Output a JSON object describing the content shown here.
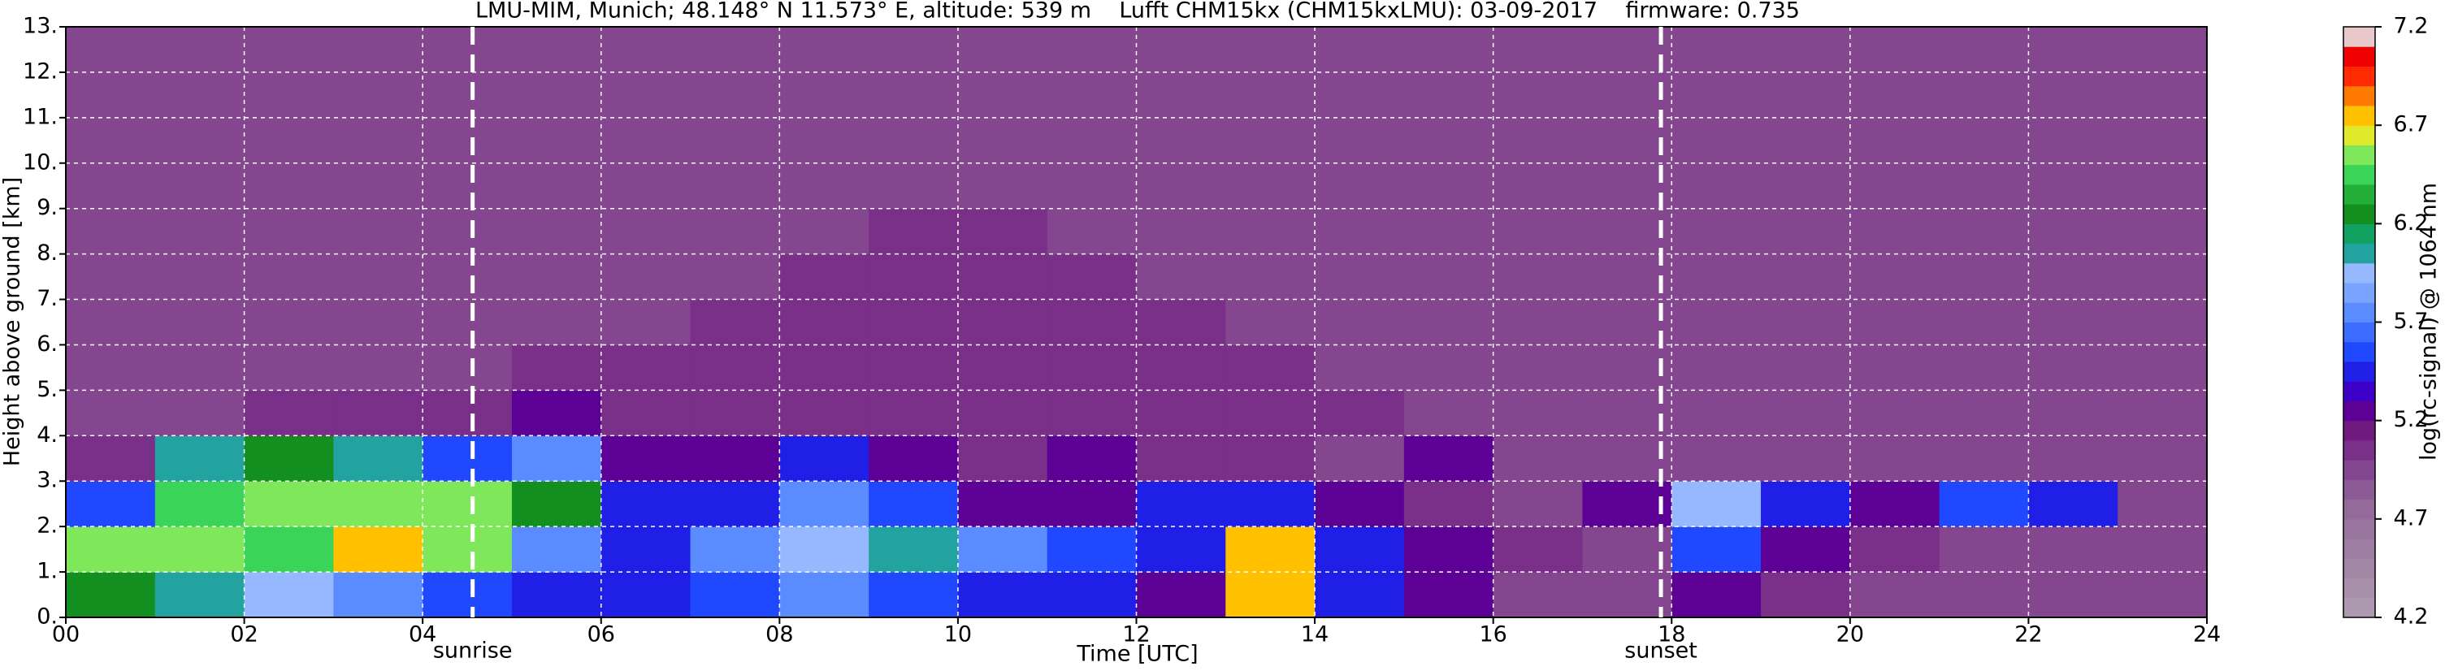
{
  "chart_data": {
    "type": "heatmap",
    "title": "LMU-MIM, Munich; 48.148° N 11.573° E, altitude: 539 m    Lufft CHM15kx (CHM15kxLMU): 03-09-2017    firmware: 0.735",
    "xlabel": "Time [UTC]",
    "ylabel": "Height above ground [km]",
    "xlim": [
      0,
      24
    ],
    "ylim": [
      0,
      13
    ],
    "xticks": [
      {
        "value": 0,
        "label": "00"
      },
      {
        "value": 2,
        "label": "02"
      },
      {
        "value": 4,
        "label": "04"
      },
      {
        "value": 6,
        "label": "06"
      },
      {
        "value": 8,
        "label": "08"
      },
      {
        "value": 10,
        "label": "10"
      },
      {
        "value": 12,
        "label": "12"
      },
      {
        "value": 14,
        "label": "14"
      },
      {
        "value": 16,
        "label": "16"
      },
      {
        "value": 18,
        "label": "18"
      },
      {
        "value": 20,
        "label": "20"
      },
      {
        "value": 22,
        "label": "22"
      },
      {
        "value": 24,
        "label": "24"
      }
    ],
    "yticks": [
      {
        "value": 0,
        "label": "0."
      },
      {
        "value": 1,
        "label": "1."
      },
      {
        "value": 2,
        "label": "2."
      },
      {
        "value": 3,
        "label": "3."
      },
      {
        "value": 4,
        "label": "4."
      },
      {
        "value": 5,
        "label": "5."
      },
      {
        "value": 6,
        "label": "6."
      },
      {
        "value": 7,
        "label": "7."
      },
      {
        "value": 8,
        "label": "8."
      },
      {
        "value": 9,
        "label": "9."
      },
      {
        "value": 10,
        "label": "10."
      },
      {
        "value": 11,
        "label": "11."
      },
      {
        "value": 12,
        "label": "12."
      },
      {
        "value": 13,
        "label": "13."
      }
    ],
    "grid": true,
    "xbins": [
      0,
      1,
      2,
      3,
      4,
      5,
      6,
      7,
      8,
      9,
      10,
      11,
      12,
      13,
      14,
      15,
      16,
      17,
      18,
      19,
      20,
      21,
      22,
      23,
      24
    ],
    "ybins": [
      0,
      1,
      2,
      3,
      4,
      5,
      6,
      7,
      8,
      9,
      10,
      11,
      12,
      13
    ],
    "z": [
      [
        6.3,
        6.1,
        5.9,
        5.7,
        5.6,
        5.5,
        5.4,
        5.6,
        5.7,
        5.6,
        5.5,
        5.5,
        5.3,
        6.8,
        5.5,
        5.2,
        5.0,
        4.9,
        5.3,
        5.1,
        5.0,
        5.0,
        4.9,
        4.9
      ],
      [
        6.5,
        6.6,
        6.4,
        6.7,
        6.6,
        5.8,
        5.5,
        5.8,
        5.9,
        6.0,
        5.7,
        5.6,
        5.5,
        6.7,
        5.4,
        5.2,
        5.1,
        5.0,
        5.6,
        5.3,
        5.1,
        5.0,
        5.0,
        4.9
      ],
      [
        5.6,
        6.4,
        6.6,
        6.5,
        6.6,
        6.3,
        5.4,
        5.4,
        5.7,
        5.6,
        5.3,
        5.3,
        5.4,
        5.5,
        5.2,
        5.1,
        5.0,
        5.3,
        5.9,
        5.4,
        5.3,
        5.6,
        5.5,
        5.0
      ],
      [
        5.1,
        6.0,
        6.2,
        6.0,
        5.6,
        5.8,
        5.3,
        5.2,
        5.5,
        5.2,
        5.1,
        5.3,
        5.1,
        5.1,
        5.0,
        5.2,
        5.0,
        5.0,
        5.0,
        5.0,
        5.0,
        5.0,
        4.9,
        4.9
      ],
      [
        5.0,
        5.0,
        5.1,
        5.1,
        5.1,
        5.2,
        5.1,
        5.1,
        5.1,
        5.1,
        5.1,
        5.1,
        5.1,
        5.1,
        5.1,
        5.0,
        5.0,
        5.0,
        5.0,
        5.0,
        5.0,
        5.0,
        5.0,
        5.0
      ],
      [
        5.0,
        5.0,
        5.0,
        5.0,
        5.0,
        5.1,
        5.1,
        5.1,
        5.1,
        5.1,
        5.1,
        5.1,
        5.1,
        5.1,
        5.0,
        5.0,
        5.0,
        5.0,
        5.0,
        5.0,
        5.0,
        5.0,
        5.0,
        5.0
      ],
      [
        5.0,
        5.0,
        5.0,
        5.0,
        5.0,
        5.0,
        5.0,
        5.1,
        5.1,
        5.1,
        5.1,
        5.1,
        5.1,
        5.0,
        5.0,
        5.0,
        5.0,
        5.0,
        5.0,
        5.0,
        5.0,
        5.0,
        5.0,
        5.0
      ],
      [
        5.0,
        5.0,
        5.0,
        5.0,
        5.0,
        5.0,
        5.0,
        5.0,
        5.1,
        5.1,
        5.1,
        5.1,
        5.0,
        5.0,
        5.0,
        5.0,
        5.0,
        5.0,
        5.0,
        5.0,
        5.0,
        5.0,
        5.0,
        5.0
      ],
      [
        5.0,
        5.0,
        5.0,
        5.0,
        5.0,
        5.0,
        5.0,
        5.0,
        5.0,
        5.1,
        5.1,
        5.0,
        5.0,
        5.0,
        5.0,
        5.0,
        5.0,
        5.0,
        5.0,
        5.0,
        5.0,
        5.0,
        5.0,
        5.0
      ],
      [
        5.0,
        5.0,
        5.0,
        5.0,
        5.0,
        5.0,
        5.0,
        5.0,
        5.0,
        5.0,
        5.0,
        5.0,
        5.0,
        5.0,
        5.0,
        5.0,
        5.0,
        5.0,
        5.0,
        5.0,
        5.0,
        5.0,
        5.0,
        5.0
      ],
      [
        5.0,
        5.0,
        5.0,
        5.0,
        5.0,
        5.0,
        5.0,
        5.0,
        5.0,
        5.0,
        5.0,
        5.0,
        5.0,
        5.0,
        5.0,
        5.0,
        5.0,
        5.0,
        5.0,
        5.0,
        5.0,
        5.0,
        5.0,
        5.0
      ],
      [
        5.0,
        5.0,
        5.0,
        5.0,
        5.0,
        5.0,
        5.0,
        5.0,
        5.0,
        5.0,
        5.0,
        5.0,
        5.0,
        5.0,
        5.0,
        5.0,
        5.0,
        5.0,
        5.0,
        5.0,
        5.0,
        5.0,
        5.0,
        5.0
      ],
      [
        5.0,
        5.0,
        5.0,
        5.0,
        5.0,
        5.0,
        5.0,
        5.0,
        5.0,
        5.0,
        5.0,
        5.0,
        5.0,
        5.0,
        5.0,
        5.0,
        5.0,
        5.0,
        5.0,
        5.0,
        5.0,
        5.0,
        5.0,
        5.0
      ]
    ],
    "annotations": [
      {
        "label": "sunrise",
        "x": 4.56
      },
      {
        "label": "sunset",
        "x": 17.88
      }
    ],
    "colorbar": {
      "label": "log(rc-signal) @ 1064 nm",
      "lim": [
        4.2,
        7.2
      ],
      "ticks": [
        4.2,
        4.7,
        5.2,
        5.7,
        6.2,
        6.7,
        7.2
      ],
      "colors": [
        "#ad99b0",
        "#a890ab",
        "#a387a7",
        "#9e7ea3",
        "#99759f",
        "#946a9b",
        "#8c5a95",
        "#84468f",
        "#7a2f88",
        "#701a80",
        "#5c0096",
        "#3c00c8",
        "#1f1fe8",
        "#2048ff",
        "#3c6cff",
        "#5b8cff",
        "#7aa4ff",
        "#95b8ff",
        "#22a3a0",
        "#10a060",
        "#138f1f",
        "#22b03a",
        "#39d458",
        "#7fe85a",
        "#e0ea2a",
        "#ffc000",
        "#ff7a00",
        "#ff2a00",
        "#f00000",
        "#e8c8c8"
      ]
    }
  }
}
